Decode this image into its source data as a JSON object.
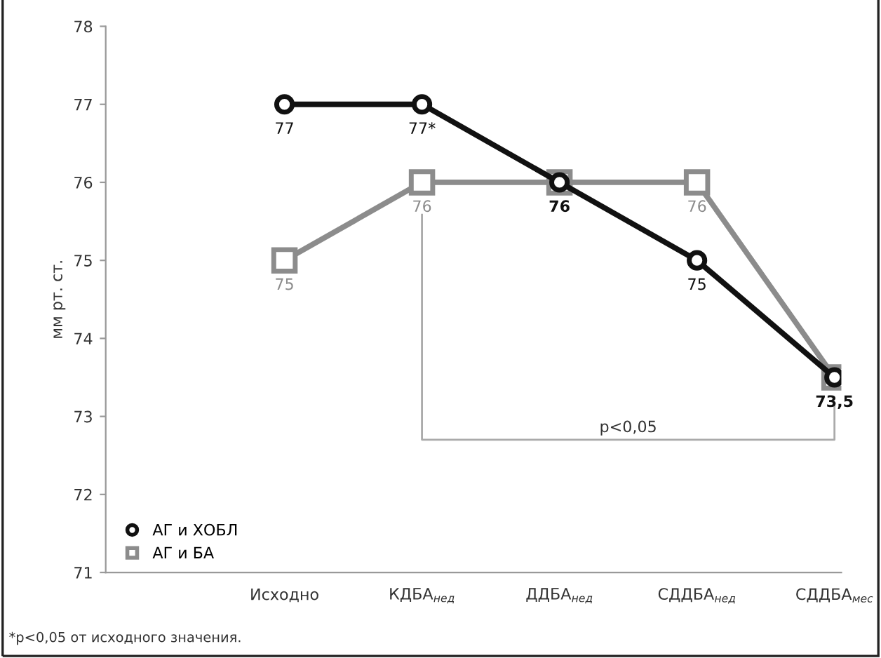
{
  "chart_data": {
    "type": "line",
    "ylabel": "мм рт. ст.",
    "categories": [
      "Исходно",
      "КДБА$_{нед}$",
      "ДДБА$_{нед}$",
      "СДДБА$_{нед}$",
      "СДДБА$_{мес}$"
    ],
    "series": [
      {
        "name": "АГ и ХОБЛ",
        "color": "#111111",
        "marker": "circle",
        "values": [
          77,
          77,
          76,
          75,
          73.5
        ],
        "value_labels": [
          "77",
          "77*",
          "76",
          "75",
          "73,5"
        ]
      },
      {
        "name": "АГ и БА",
        "color": "#8c8c8c",
        "marker": "square",
        "values": [
          75,
          76,
          76,
          76,
          73.5
        ],
        "value_labels": [
          "75",
          "76",
          null,
          "76",
          null
        ]
      }
    ],
    "ylim": [
      71,
      78
    ],
    "yticks": [
      71,
      72,
      73,
      74,
      75,
      76,
      77,
      78
    ],
    "grid": false,
    "legend": "bottom left",
    "line_style": "solid",
    "annotations": [
      "p<0,05",
      "*p<0,05 от исходного значения."
    ]
  }
}
